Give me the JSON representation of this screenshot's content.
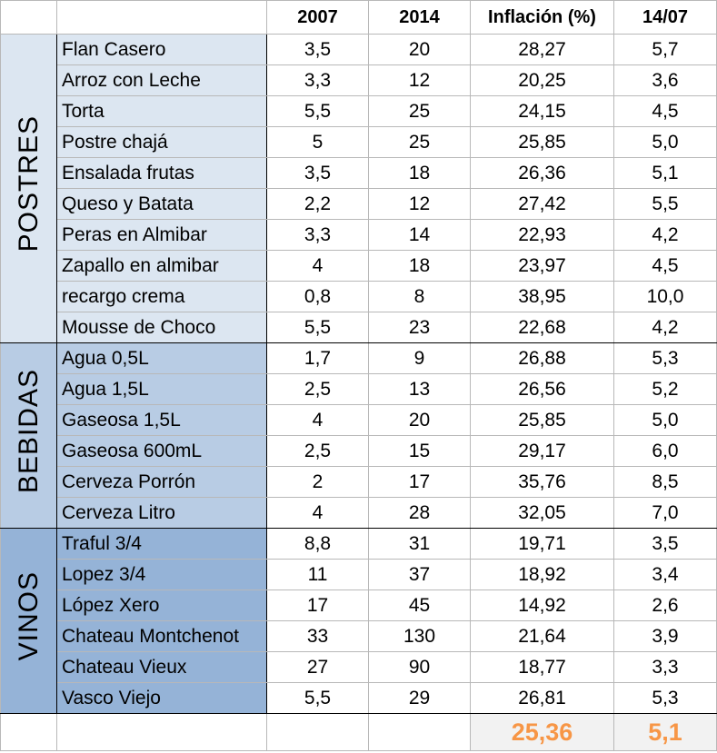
{
  "headers": [
    "",
    "",
    "2007",
    "2014",
    "Inflación (%)",
    "14/07"
  ],
  "groups": [
    {
      "label": "POSTRES",
      "fill": "#dce6f1",
      "rows": [
        [
          "Flan Casero",
          "3,5",
          "20",
          "28,27",
          "5,7"
        ],
        [
          "Arroz con Leche",
          "3,3",
          "12",
          "20,25",
          "3,6"
        ],
        [
          "Torta",
          "5,5",
          "25",
          "24,15",
          "4,5"
        ],
        [
          "Postre chajá",
          "5",
          "25",
          "25,85",
          "5,0"
        ],
        [
          "Ensalada frutas",
          "3,5",
          "18",
          "26,36",
          "5,1"
        ],
        [
          "Queso y Batata",
          "2,2",
          "12",
          "27,42",
          "5,5"
        ],
        [
          "Peras en Almibar",
          "3,3",
          "14",
          "22,93",
          "4,2"
        ],
        [
          "Zapallo en almibar",
          "4",
          "18",
          "23,97",
          "4,5"
        ],
        [
          "recargo crema",
          "0,8",
          "8",
          "38,95",
          "10,0"
        ],
        [
          "Mousse de Choco",
          "5,5",
          "23",
          "22,68",
          "4,2"
        ]
      ]
    },
    {
      "label": "BEBIDAS",
      "fill": "#b8cce4",
      "rows": [
        [
          "Agua 0,5L",
          "1,7",
          "9",
          "26,88",
          "5,3"
        ],
        [
          "Agua 1,5L",
          "2,5",
          "13",
          "26,56",
          "5,2"
        ],
        [
          "Gaseosa 1,5L",
          "4",
          "20",
          "25,85",
          "5,0"
        ],
        [
          "Gaseosa 600mL",
          "2,5",
          "15",
          "29,17",
          "6,0"
        ],
        [
          "Cerveza Porrón",
          "2",
          "17",
          "35,76",
          "8,5"
        ],
        [
          "Cerveza Litro",
          "4",
          "28",
          "32,05",
          "7,0"
        ]
      ]
    },
    {
      "label": "VINOS",
      "fill": "#95b3d7",
      "rows": [
        [
          "Traful 3/4",
          "8,8",
          "31",
          "19,71",
          "3,5"
        ],
        [
          "Lopez 3/4",
          "11",
          "37",
          "18,92",
          "3,4"
        ],
        [
          "López Xero",
          "17",
          "45",
          "14,92",
          "2,6"
        ],
        [
          "Chateau Montchenot",
          "33",
          "130",
          "21,64",
          "3,9"
        ],
        [
          "Chateau Vieux",
          "27",
          "90",
          "18,77",
          "3,3"
        ],
        [
          "Vasco Viejo",
          "5,5",
          "29",
          "26,81",
          "5,3"
        ]
      ]
    }
  ],
  "totals": {
    "inflacion": "25,36",
    "ratio": "5,1",
    "color": "#f79646"
  }
}
